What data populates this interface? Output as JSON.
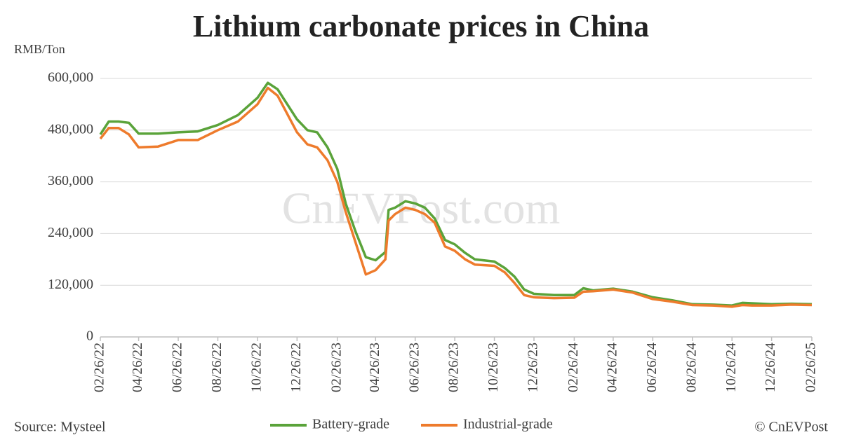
{
  "chart_data": {
    "type": "line",
    "title": "Lithium carbonate prices in China",
    "y_unit": "RMB/Ton",
    "source": "Source: Mysteel",
    "credit": "© CnEVPost",
    "watermark": "CnEVPost.com",
    "x": [
      "02/26/22",
      "03/11/22",
      "03/26/22",
      "04/11/22",
      "04/26/22",
      "05/26/22",
      "06/26/22",
      "07/26/22",
      "08/26/22",
      "09/26/22",
      "10/26/22",
      "11/11/22",
      "11/26/22",
      "12/26/22",
      "01/11/23",
      "01/26/23",
      "02/11/23",
      "02/26/23",
      "03/11/23",
      "03/26/23",
      "04/11/23",
      "04/26/23",
      "05/11/23",
      "05/16/23",
      "05/26/23",
      "06/11/23",
      "06/26/23",
      "07/11/23",
      "07/26/23",
      "08/11/23",
      "08/26/23",
      "09/11/23",
      "09/26/23",
      "10/26/23",
      "11/11/23",
      "11/26/23",
      "12/11/23",
      "12/26/23",
      "01/26/24",
      "02/26/24",
      "03/11/24",
      "03/26/24",
      "04/26/24",
      "05/26/24",
      "06/26/24",
      "07/26/24",
      "08/26/24",
      "09/26/24",
      "10/26/24",
      "11/11/24",
      "11/26/24",
      "12/26/24",
      "01/26/25",
      "02/26/25"
    ],
    "series": [
      {
        "name": "Battery-grade",
        "color": "#5aa33a",
        "values": [
          470000,
          500000,
          500000,
          497000,
          472000,
          472000,
          475000,
          477000,
          492000,
          515000,
          555000,
          590000,
          575000,
          505000,
          480000,
          475000,
          440000,
          390000,
          310000,
          245000,
          185000,
          178000,
          197000,
          295000,
          300000,
          315000,
          310000,
          300000,
          275000,
          225000,
          215000,
          195000,
          180000,
          175000,
          160000,
          140000,
          110000,
          100000,
          97000,
          97000,
          113000,
          108000,
          112000,
          105000,
          92000,
          85000,
          76000,
          75000,
          73000,
          79000,
          78000,
          76000,
          77000,
          76000
        ]
      },
      {
        "name": "Industrial-grade",
        "color": "#ee7b2c",
        "values": [
          460000,
          485000,
          485000,
          470000,
          440000,
          442000,
          457000,
          457000,
          480000,
          500000,
          540000,
          578000,
          560000,
          475000,
          447000,
          440000,
          410000,
          360000,
          290000,
          220000,
          145000,
          155000,
          180000,
          270000,
          285000,
          300000,
          295000,
          285000,
          265000,
          210000,
          200000,
          180000,
          168000,
          165000,
          150000,
          125000,
          97000,
          92000,
          90000,
          91000,
          105000,
          106000,
          110000,
          103000,
          88000,
          82000,
          74000,
          73000,
          70000,
          74000,
          73000,
          73000,
          75000,
          74000
        ]
      }
    ],
    "xlim": [
      "02/26/22",
      "02/26/25"
    ],
    "xticks": [
      "02/26/22",
      "04/26/22",
      "06/26/22",
      "08/26/22",
      "10/26/22",
      "12/26/22",
      "02/26/23",
      "04/26/23",
      "06/26/23",
      "08/26/23",
      "10/26/23",
      "12/26/23",
      "02/26/24",
      "04/26/24",
      "06/26/24",
      "08/26/24",
      "10/26/24",
      "12/26/24",
      "02/26/25"
    ],
    "ylim": [
      0,
      600000
    ],
    "yticks": [
      0,
      {
        "value": 120000,
        "label": "120,000"
      },
      {
        "value": 240000,
        "label": "240,000"
      },
      {
        "value": 360000,
        "label": "360,000"
      },
      {
        "value": 480000,
        "label": "480,000"
      },
      {
        "value": 600000,
        "label": "600,000"
      }
    ],
    "grid": true
  }
}
